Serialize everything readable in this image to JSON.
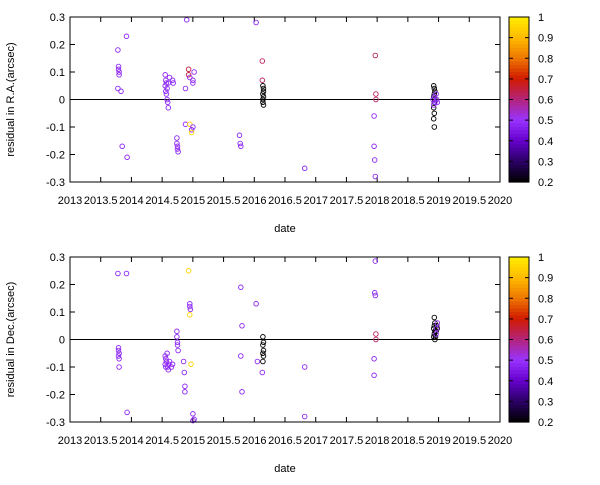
{
  "chart_data": [
    {
      "type": "scatter",
      "xlabel": "date",
      "ylabel": "residual in R.A.(arcsec)",
      "xlim": [
        2013,
        2020
      ],
      "ylim": [
        -0.3,
        0.3
      ],
      "x_ticks": [
        "2013",
        "2013.5",
        "2014",
        "2014.5",
        "2015",
        "2015.5",
        "2016",
        "2016.5",
        "2017",
        "2017.5",
        "2018",
        "2018.5",
        "2019",
        "2019.5",
        "2020"
      ],
      "y_ticks": [
        "0.3",
        "0.2",
        "0.1",
        "0",
        "-0.1",
        "-0.2",
        "-0.3"
      ],
      "colorbar_ticks": [
        "1",
        "0.9",
        "0.8",
        "0.7",
        "0.6",
        "0.5",
        "0.4",
        "0.3",
        "0.2"
      ],
      "colorbar_range": [
        0.2,
        1
      ],
      "colormap": [
        "#000000",
        "#2a0066",
        "#6600cc",
        "#9933ff",
        "#b3247a",
        "#d11a00",
        "#ee7700",
        "#ffbb00",
        "#ffee00"
      ],
      "zero_line": true,
      "grid": false,
      "points": [
        {
          "x": 2013.78,
          "y": 0.18,
          "c": 0.48
        },
        {
          "x": 2013.79,
          "y": 0.12,
          "c": 0.48
        },
        {
          "x": 2013.79,
          "y": 0.11,
          "c": 0.48
        },
        {
          "x": 2013.8,
          "y": 0.1,
          "c": 0.48
        },
        {
          "x": 2013.8,
          "y": 0.09,
          "c": 0.48
        },
        {
          "x": 2013.78,
          "y": 0.04,
          "c": 0.48
        },
        {
          "x": 2013.83,
          "y": 0.03,
          "c": 0.48
        },
        {
          "x": 2013.92,
          "y": 0.23,
          "c": 0.48
        },
        {
          "x": 2013.85,
          "y": -0.17,
          "c": 0.48
        },
        {
          "x": 2013.93,
          "y": -0.21,
          "c": 0.48
        },
        {
          "x": 2014.55,
          "y": 0.09,
          "c": 0.48
        },
        {
          "x": 2014.56,
          "y": 0.07,
          "c": 0.48
        },
        {
          "x": 2014.57,
          "y": 0.06,
          "c": 0.48
        },
        {
          "x": 2014.55,
          "y": 0.05,
          "c": 0.48
        },
        {
          "x": 2014.58,
          "y": 0.04,
          "c": 0.48
        },
        {
          "x": 2014.56,
          "y": 0.03,
          "c": 0.48
        },
        {
          "x": 2014.57,
          "y": 0.02,
          "c": 0.48
        },
        {
          "x": 2014.58,
          "y": 0.0,
          "c": 0.48
        },
        {
          "x": 2014.59,
          "y": -0.01,
          "c": 0.48
        },
        {
          "x": 2014.6,
          "y": -0.03,
          "c": 0.48
        },
        {
          "x": 2014.6,
          "y": 0.06,
          "c": 0.48
        },
        {
          "x": 2014.62,
          "y": 0.08,
          "c": 0.48
        },
        {
          "x": 2014.67,
          "y": 0.07,
          "c": 0.48
        },
        {
          "x": 2014.68,
          "y": 0.06,
          "c": 0.48
        },
        {
          "x": 2014.74,
          "y": -0.14,
          "c": 0.48
        },
        {
          "x": 2014.74,
          "y": -0.16,
          "c": 0.48
        },
        {
          "x": 2014.75,
          "y": -0.17,
          "c": 0.48
        },
        {
          "x": 2014.75,
          "y": -0.18,
          "c": 0.48
        },
        {
          "x": 2014.76,
          "y": -0.19,
          "c": 0.48
        },
        {
          "x": 2014.88,
          "y": -0.09,
          "c": 0.48
        },
        {
          "x": 2014.88,
          "y": 0.04,
          "c": 0.48
        },
        {
          "x": 2014.9,
          "y": 0.29,
          "c": 0.48
        },
        {
          "x": 2014.93,
          "y": 0.11,
          "c": 0.65
        },
        {
          "x": 2014.93,
          "y": 0.09,
          "c": 0.65
        },
        {
          "x": 2014.95,
          "y": 0.08,
          "c": 0.48
        },
        {
          "x": 2014.95,
          "y": -0.09,
          "c": 0.95
        },
        {
          "x": 2014.98,
          "y": -0.11,
          "c": 0.48
        },
        {
          "x": 2014.98,
          "y": -0.12,
          "c": 0.95
        },
        {
          "x": 2015.0,
          "y": 0.07,
          "c": 0.48
        },
        {
          "x": 2015.0,
          "y": 0.06,
          "c": 0.48
        },
        {
          "x": 2015.0,
          "y": -0.1,
          "c": 0.48
        },
        {
          "x": 2015.02,
          "y": 0.1,
          "c": 0.48
        },
        {
          "x": 2015.76,
          "y": -0.13,
          "c": 0.48
        },
        {
          "x": 2015.77,
          "y": -0.16,
          "c": 0.48
        },
        {
          "x": 2015.78,
          "y": -0.17,
          "c": 0.48
        },
        {
          "x": 2016.03,
          "y": 0.28,
          "c": 0.48
        },
        {
          "x": 2016.13,
          "y": 0.14,
          "c": 0.62
        },
        {
          "x": 2016.13,
          "y": 0.07,
          "c": 0.62
        },
        {
          "x": 2016.14,
          "y": 0.05,
          "c": 0.2
        },
        {
          "x": 2016.15,
          "y": 0.04,
          "c": 0.2
        },
        {
          "x": 2016.15,
          "y": 0.03,
          "c": 0.2
        },
        {
          "x": 2016.14,
          "y": 0.02,
          "c": 0.2
        },
        {
          "x": 2016.15,
          "y": 0.01,
          "c": 0.2
        },
        {
          "x": 2016.14,
          "y": 0.0,
          "c": 0.2
        },
        {
          "x": 2016.14,
          "y": -0.01,
          "c": 0.2
        },
        {
          "x": 2016.15,
          "y": -0.02,
          "c": 0.2
        },
        {
          "x": 2016.82,
          "y": -0.25,
          "c": 0.48
        },
        {
          "x": 2017.97,
          "y": 0.16,
          "c": 0.62
        },
        {
          "x": 2017.98,
          "y": 0.02,
          "c": 0.62
        },
        {
          "x": 2017.98,
          "y": 0.0,
          "c": 0.62
        },
        {
          "x": 2017.95,
          "y": -0.06,
          "c": 0.48
        },
        {
          "x": 2017.95,
          "y": -0.17,
          "c": 0.48
        },
        {
          "x": 2017.96,
          "y": -0.22,
          "c": 0.48
        },
        {
          "x": 2017.97,
          "y": -0.28,
          "c": 0.48
        },
        {
          "x": 2018.92,
          "y": 0.05,
          "c": 0.2
        },
        {
          "x": 2018.93,
          "y": 0.04,
          "c": 0.2
        },
        {
          "x": 2018.94,
          "y": 0.03,
          "c": 0.2
        },
        {
          "x": 2018.93,
          "y": 0.02,
          "c": 0.2
        },
        {
          "x": 2018.92,
          "y": 0.01,
          "c": 0.2
        },
        {
          "x": 2018.94,
          "y": 0.0,
          "c": 0.2
        },
        {
          "x": 2018.93,
          "y": -0.01,
          "c": 0.2
        },
        {
          "x": 2018.92,
          "y": -0.03,
          "c": 0.2
        },
        {
          "x": 2018.93,
          "y": -0.05,
          "c": 0.2
        },
        {
          "x": 2018.92,
          "y": -0.07,
          "c": 0.2
        },
        {
          "x": 2018.93,
          "y": -0.1,
          "c": 0.2
        },
        {
          "x": 2018.91,
          "y": 0.0,
          "c": 0.48
        },
        {
          "x": 2018.92,
          "y": -0.02,
          "c": 0.48
        },
        {
          "x": 2018.93,
          "y": 0.01,
          "c": 0.48
        },
        {
          "x": 2018.94,
          "y": -0.01,
          "c": 0.48
        },
        {
          "x": 2018.96,
          "y": 0.02,
          "c": 0.48
        },
        {
          "x": 2018.97,
          "y": 0.0,
          "c": 0.48
        },
        {
          "x": 2018.98,
          "y": -0.01,
          "c": 0.48
        }
      ]
    },
    {
      "type": "scatter",
      "xlabel": "date",
      "ylabel": "residual in Dec.(arcsec)",
      "xlim": [
        2013,
        2020
      ],
      "ylim": [
        -0.3,
        0.3
      ],
      "x_ticks": [
        "2013",
        "2013.5",
        "2014",
        "2014.5",
        "2015",
        "2015.5",
        "2016",
        "2016.5",
        "2017",
        "2017.5",
        "2018",
        "2018.5",
        "2019",
        "2019.5",
        "2020"
      ],
      "y_ticks": [
        "0.3",
        "0.2",
        "0.1",
        "0",
        "-0.1",
        "-0.2",
        "-0.3"
      ],
      "colorbar_ticks": [
        "1",
        "0.9",
        "0.8",
        "0.7",
        "0.6",
        "0.5",
        "0.4",
        "0.3",
        "0.2"
      ],
      "colorbar_range": [
        0.2,
        1
      ],
      "colormap": [
        "#000000",
        "#2a0066",
        "#6600cc",
        "#9933ff",
        "#b3247a",
        "#d11a00",
        "#ee7700",
        "#ffbb00",
        "#ffee00"
      ],
      "zero_line": true,
      "grid": false,
      "points": [
        {
          "x": 2013.78,
          "y": 0.24,
          "c": 0.48
        },
        {
          "x": 2013.92,
          "y": 0.24,
          "c": 0.48
        },
        {
          "x": 2013.79,
          "y": -0.03,
          "c": 0.48
        },
        {
          "x": 2013.79,
          "y": -0.04,
          "c": 0.48
        },
        {
          "x": 2013.8,
          "y": -0.05,
          "c": 0.48
        },
        {
          "x": 2013.79,
          "y": -0.06,
          "c": 0.48
        },
        {
          "x": 2013.8,
          "y": -0.07,
          "c": 0.48
        },
        {
          "x": 2013.8,
          "y": -0.1,
          "c": 0.48
        },
        {
          "x": 2013.93,
          "y": -0.265,
          "c": 0.48
        },
        {
          "x": 2014.55,
          "y": -0.06,
          "c": 0.48
        },
        {
          "x": 2014.56,
          "y": -0.07,
          "c": 0.48
        },
        {
          "x": 2014.57,
          "y": -0.08,
          "c": 0.48
        },
        {
          "x": 2014.55,
          "y": -0.09,
          "c": 0.48
        },
        {
          "x": 2014.56,
          "y": -0.1,
          "c": 0.48
        },
        {
          "x": 2014.58,
          "y": -0.05,
          "c": 0.48
        },
        {
          "x": 2014.59,
          "y": -0.1,
          "c": 0.48
        },
        {
          "x": 2014.6,
          "y": -0.11,
          "c": 0.48
        },
        {
          "x": 2014.61,
          "y": -0.09,
          "c": 0.48
        },
        {
          "x": 2014.62,
          "y": -0.08,
          "c": 0.48
        },
        {
          "x": 2014.65,
          "y": -0.1,
          "c": 0.48
        },
        {
          "x": 2014.67,
          "y": -0.09,
          "c": 0.48
        },
        {
          "x": 2014.74,
          "y": 0.03,
          "c": 0.48
        },
        {
          "x": 2014.74,
          "y": 0.01,
          "c": 0.48
        },
        {
          "x": 2014.75,
          "y": -0.01,
          "c": 0.48
        },
        {
          "x": 2014.75,
          "y": -0.02,
          "c": 0.48
        },
        {
          "x": 2014.76,
          "y": -0.04,
          "c": 0.48
        },
        {
          "x": 2014.85,
          "y": -0.08,
          "c": 0.48
        },
        {
          "x": 2014.86,
          "y": -0.12,
          "c": 0.48
        },
        {
          "x": 2014.87,
          "y": -0.17,
          "c": 0.48
        },
        {
          "x": 2014.87,
          "y": -0.19,
          "c": 0.48
        },
        {
          "x": 2014.93,
          "y": 0.25,
          "c": 0.95
        },
        {
          "x": 2014.95,
          "y": 0.13,
          "c": 0.48
        },
        {
          "x": 2014.95,
          "y": 0.12,
          "c": 0.48
        },
        {
          "x": 2014.96,
          "y": 0.11,
          "c": 0.48
        },
        {
          "x": 2014.95,
          "y": 0.09,
          "c": 0.95
        },
        {
          "x": 2014.97,
          "y": -0.09,
          "c": 0.95
        },
        {
          "x": 2015.0,
          "y": -0.27,
          "c": 0.48
        },
        {
          "x": 2015.02,
          "y": -0.29,
          "c": 0.48
        },
        {
          "x": 2015.0,
          "y": -0.295,
          "c": 0.48
        },
        {
          "x": 2015.78,
          "y": 0.19,
          "c": 0.48
        },
        {
          "x": 2015.8,
          "y": 0.05,
          "c": 0.48
        },
        {
          "x": 2015.78,
          "y": -0.06,
          "c": 0.48
        },
        {
          "x": 2015.8,
          "y": -0.19,
          "c": 0.48
        },
        {
          "x": 2016.03,
          "y": 0.13,
          "c": 0.48
        },
        {
          "x": 2016.05,
          "y": -0.08,
          "c": 0.48
        },
        {
          "x": 2016.13,
          "y": -0.12,
          "c": 0.48
        },
        {
          "x": 2016.14,
          "y": 0.01,
          "c": 0.2
        },
        {
          "x": 2016.15,
          "y": -0.01,
          "c": 0.2
        },
        {
          "x": 2016.14,
          "y": -0.02,
          "c": 0.2
        },
        {
          "x": 2016.15,
          "y": -0.04,
          "c": 0.2
        },
        {
          "x": 2016.14,
          "y": -0.05,
          "c": 0.2
        },
        {
          "x": 2016.15,
          "y": -0.06,
          "c": 0.2
        },
        {
          "x": 2016.14,
          "y": -0.08,
          "c": 0.2
        },
        {
          "x": 2016.82,
          "y": -0.1,
          "c": 0.48
        },
        {
          "x": 2016.82,
          "y": -0.28,
          "c": 0.48
        },
        {
          "x": 2017.97,
          "y": 0.285,
          "c": 0.48
        },
        {
          "x": 2017.96,
          "y": 0.17,
          "c": 0.48
        },
        {
          "x": 2017.97,
          "y": 0.16,
          "c": 0.48
        },
        {
          "x": 2017.98,
          "y": 0.02,
          "c": 0.62
        },
        {
          "x": 2017.98,
          "y": 0.0,
          "c": 0.62
        },
        {
          "x": 2017.95,
          "y": -0.07,
          "c": 0.48
        },
        {
          "x": 2017.95,
          "y": -0.13,
          "c": 0.48
        },
        {
          "x": 2018.93,
          "y": 0.08,
          "c": 0.2
        },
        {
          "x": 2018.94,
          "y": 0.06,
          "c": 0.2
        },
        {
          "x": 2018.93,
          "y": 0.05,
          "c": 0.2
        },
        {
          "x": 2018.92,
          "y": 0.04,
          "c": 0.2
        },
        {
          "x": 2018.94,
          "y": 0.03,
          "c": 0.2
        },
        {
          "x": 2018.93,
          "y": 0.02,
          "c": 0.2
        },
        {
          "x": 2018.92,
          "y": 0.01,
          "c": 0.2
        },
        {
          "x": 2018.94,
          "y": 0.0,
          "c": 0.2
        },
        {
          "x": 2018.95,
          "y": 0.01,
          "c": 0.2
        },
        {
          "x": 2018.96,
          "y": 0.03,
          "c": 0.2
        },
        {
          "x": 2018.97,
          "y": 0.05,
          "c": 0.2
        },
        {
          "x": 2018.98,
          "y": 0.04,
          "c": 0.2
        },
        {
          "x": 2018.96,
          "y": 0.02,
          "c": 0.48
        },
        {
          "x": 2018.97,
          "y": 0.04,
          "c": 0.48
        },
        {
          "x": 2018.98,
          "y": 0.06,
          "c": 0.48
        }
      ]
    }
  ]
}
